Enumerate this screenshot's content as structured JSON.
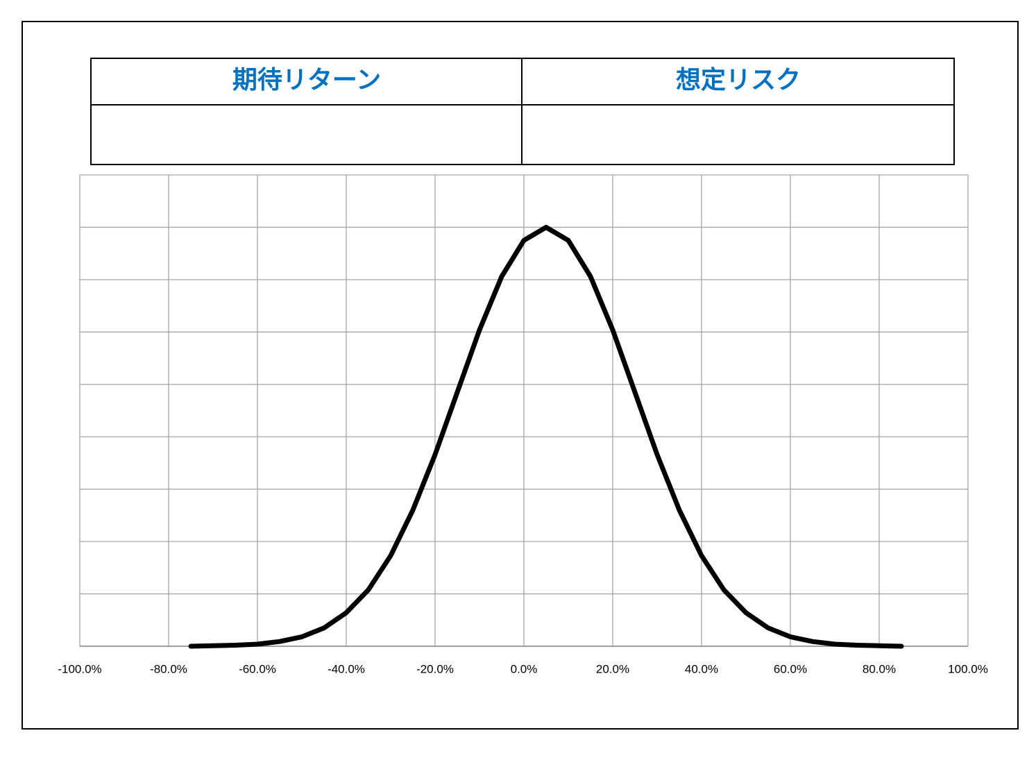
{
  "table": {
    "headers": [
      "期待リターン",
      "想定リスク"
    ]
  },
  "chart_data": {
    "type": "line",
    "x": [
      -75,
      -70,
      -65,
      -60,
      -55,
      -50,
      -45,
      -40,
      -35,
      -30,
      -25,
      -20,
      -15,
      -10,
      -5,
      0,
      5,
      10,
      15,
      20,
      25,
      30,
      35,
      40,
      45,
      50,
      55,
      60,
      65,
      70,
      75,
      80,
      85
    ],
    "series": [
      {
        "color": "#000000",
        "values": [
          0.0,
          0.01,
          0.02,
          0.04,
          0.09,
          0.18,
          0.35,
          0.64,
          1.08,
          1.73,
          2.6,
          3.66,
          4.85,
          6.04,
          7.06,
          7.75,
          8,
          7.75,
          7.06,
          6.04,
          4.85,
          3.66,
          2.6,
          1.73,
          1.08,
          0.64,
          0.35,
          0.18,
          0.09,
          0.04,
          0.02,
          0.01,
          0.0
        ]
      }
    ],
    "xlim": [
      -100,
      100
    ],
    "xticks": [
      {
        "value": -100,
        "label": "-100.0%"
      },
      {
        "value": -80,
        "label": "-80.0%"
      },
      {
        "value": -60,
        "label": "-60.0%"
      },
      {
        "value": -40,
        "label": "-40.0%"
      },
      {
        "value": -20,
        "label": "-20.0%"
      },
      {
        "value": 0,
        "label": "0.0%"
      },
      {
        "value": 20,
        "label": "20.0%"
      },
      {
        "value": 40,
        "label": "40.0%"
      },
      {
        "value": 60,
        "label": "60.0%"
      },
      {
        "value": 80,
        "label": "80.0%"
      },
      {
        "value": 100,
        "label": "100.0%"
      }
    ],
    "ylim": [
      0,
      9
    ],
    "yticks": [
      0,
      1,
      2,
      3,
      4,
      5,
      6,
      7,
      8,
      9
    ],
    "grid": true
  }
}
